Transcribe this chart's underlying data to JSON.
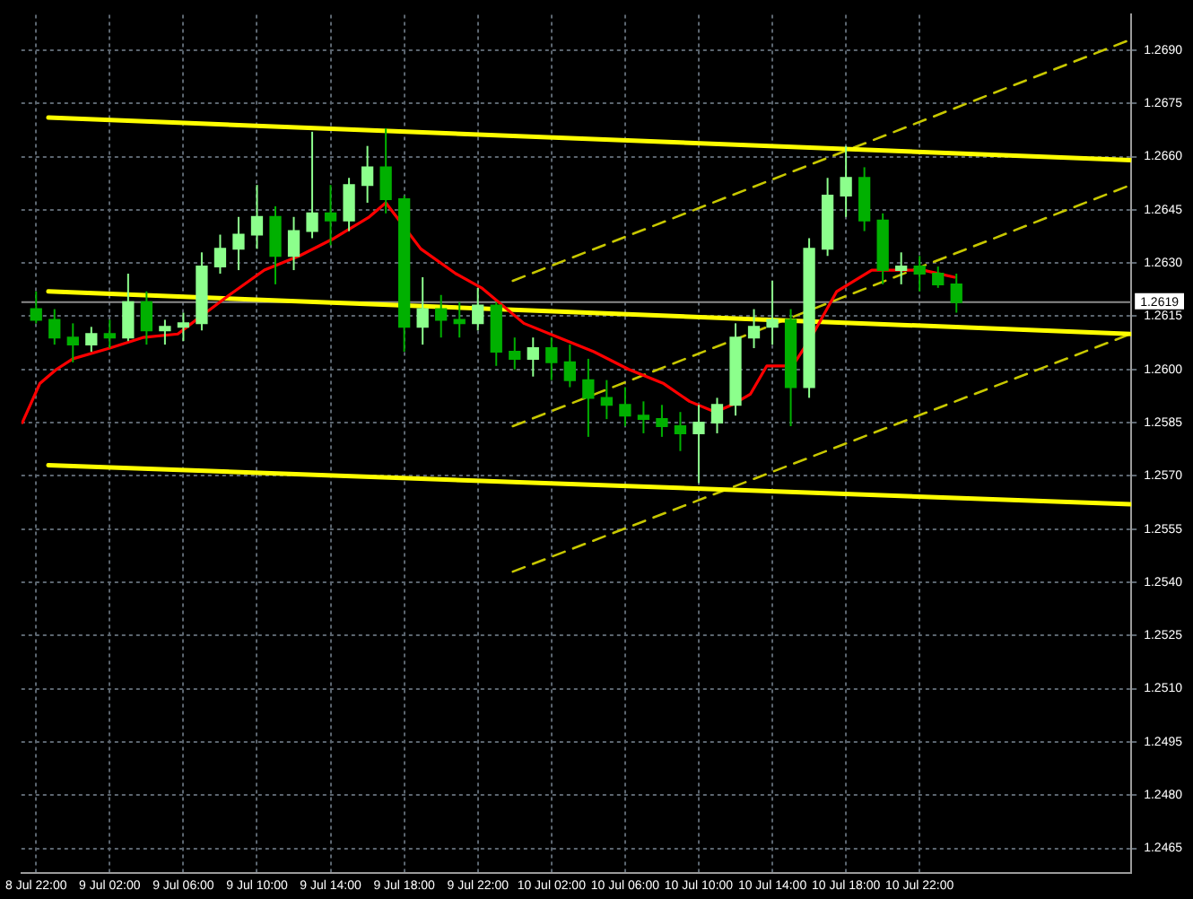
{
  "chart_data": {
    "type": "candlestick",
    "marker": "none",
    "grid": true,
    "colors": [
      "#00b000",
      "#00b000",
      "#00b000",
      "#8cff8c",
      "#00b000",
      "#8cff8c",
      "#00b000",
      "#8cff8c",
      "#8cff8c",
      "#8cff8c",
      "#8cff8c",
      "#8cff8c",
      "#8cff8c",
      "#00b000",
      "#8cff8c",
      "#8cff8c",
      "#00b000",
      "#8cff8c",
      "#8cff8c",
      "#00b000",
      "#00b000",
      "#8cff8c",
      "#00b000",
      "#00b000",
      "#8cff8c",
      "#00b000",
      "#00b000",
      "#8cff8c",
      "#00b000",
      "#00b000",
      "#00b000",
      "#00b000",
      "#00b000",
      "#00b000",
      "#00b000",
      "#00b000",
      "#8cff8c",
      "#8cff8c",
      "#8cff8c",
      "#8cff8c",
      "#8cff8c",
      "#00b000",
      "#8cff8c",
      "#8cff8c",
      "#8cff8c",
      "#00b000",
      "#00b000",
      "#8cff8c",
      "#00b000",
      "#00b000",
      "#00b000"
    ],
    "x": [
      "--07-08T22:00",
      "--07-08T23:00",
      "--07-09T00:00",
      "--07-09T01:00",
      "--07-09T02:00",
      "--07-09T03:00",
      "--07-09T04:00",
      "--07-09T05:00",
      "--07-09T06:00",
      "--07-09T07:00",
      "--07-09T08:00",
      "--07-09T09:00",
      "--07-09T10:00",
      "--07-09T11:00",
      "--07-09T12:00",
      "--07-09T13:00",
      "--07-09T14:00",
      "--07-09T15:00",
      "--07-09T16:00",
      "--07-09T17:00",
      "--07-09T18:00",
      "--07-09T19:00",
      "--07-09T20:00",
      "--07-09T21:00",
      "--07-09T22:00",
      "--07-09T23:00",
      "--07-10T00:00",
      "--07-10T01:00",
      "--07-10T02:00",
      "--07-10T03:00",
      "--07-10T04:00",
      "--07-10T05:00",
      "--07-10T06:00",
      "--07-10T07:00",
      "--07-10T08:00",
      "--07-10T09:00",
      "--07-10T10:00",
      "--07-10T11:00",
      "--07-10T12:00",
      "--07-10T13:00",
      "--07-10T14:00",
      "--07-10T15:00",
      "--07-10T16:00",
      "--07-10T17:00",
      "--07-10T18:00",
      "--07-10T19:00",
      "--07-10T20:00",
      "--07-10T21:00",
      "--07-10T22:00",
      "--07-10T23:00",
      "--07-11T00:00"
    ],
    "ohlc": [
      [
        1.2617,
        1.2622,
        1.2613,
        1.2614
      ],
      [
        1.2614,
        1.2617,
        1.2607,
        1.2609
      ],
      [
        1.2609,
        1.2613,
        1.2602,
        1.2607
      ],
      [
        1.2607,
        1.2612,
        1.2605,
        1.261
      ],
      [
        1.261,
        1.2614,
        1.2606,
        1.2609
      ],
      [
        1.2609,
        1.2627,
        1.2608,
        1.2619
      ],
      [
        1.2619,
        1.2622,
        1.2607,
        1.2611
      ],
      [
        1.2611,
        1.2614,
        1.2607,
        1.2612
      ],
      [
        1.2612,
        1.2616,
        1.2608,
        1.2613
      ],
      [
        1.2613,
        1.2633,
        1.2611,
        1.2629
      ],
      [
        1.2629,
        1.2638,
        1.2627,
        1.2634
      ],
      [
        1.2634,
        1.2643,
        1.2628,
        1.2638
      ],
      [
        1.2638,
        1.2652,
        1.2634,
        1.2643
      ],
      [
        1.2643,
        1.2646,
        1.2624,
        1.2632
      ],
      [
        1.2632,
        1.2643,
        1.2628,
        1.2639
      ],
      [
        1.2639,
        1.2667,
        1.2637,
        1.2644
      ],
      [
        1.2644,
        1.2652,
        1.2635,
        1.2642
      ],
      [
        1.2642,
        1.2654,
        1.2639,
        1.2652
      ],
      [
        1.2652,
        1.2663,
        1.2647,
        1.2657
      ],
      [
        1.2657,
        1.2668,
        1.2644,
        1.2648
      ],
      [
        1.2648,
        1.2649,
        1.2605,
        1.2612
      ],
      [
        1.2612,
        1.2626,
        1.2607,
        1.2617
      ],
      [
        1.2617,
        1.2621,
        1.2609,
        1.2614
      ],
      [
        1.2614,
        1.2619,
        1.2609,
        1.2613
      ],
      [
        1.2613,
        1.2623,
        1.2611,
        1.2618
      ],
      [
        1.2618,
        1.2619,
        1.2601,
        1.2605
      ],
      [
        1.2605,
        1.2609,
        1.26,
        1.2603
      ],
      [
        1.2603,
        1.2609,
        1.2598,
        1.2606
      ],
      [
        1.2606,
        1.2609,
        1.2597,
        1.2602
      ],
      [
        1.2602,
        1.2607,
        1.2595,
        1.2597
      ],
      [
        1.2597,
        1.2603,
        1.2581,
        1.2592
      ],
      [
        1.2592,
        1.2597,
        1.2586,
        1.259
      ],
      [
        1.259,
        1.2595,
        1.2584,
        1.2587
      ],
      [
        1.2587,
        1.2591,
        1.2582,
        1.2586
      ],
      [
        1.2586,
        1.259,
        1.2581,
        1.2584
      ],
      [
        1.2584,
        1.2588,
        1.2577,
        1.2582
      ],
      [
        1.2582,
        1.259,
        1.2568,
        1.2585
      ],
      [
        1.2585,
        1.2592,
        1.2582,
        1.259
      ],
      [
        1.259,
        1.2613,
        1.2587,
        1.2609
      ],
      [
        1.2609,
        1.2617,
        1.2606,
        1.2612
      ],
      [
        1.2612,
        1.2625,
        1.2607,
        1.2614
      ],
      [
        1.2614,
        1.2617,
        1.2584,
        1.2595
      ],
      [
        1.2595,
        1.2637,
        1.2592,
        1.2634
      ],
      [
        1.2634,
        1.2654,
        1.2632,
        1.2649
      ],
      [
        1.2649,
        1.2663,
        1.2643,
        1.2654
      ],
      [
        1.2654,
        1.2657,
        1.2639,
        1.2642
      ],
      [
        1.2642,
        1.2644,
        1.2624,
        1.2628
      ],
      [
        1.2628,
        1.2633,
        1.2624,
        1.2629
      ],
      [
        1.2629,
        1.2632,
        1.2622,
        1.2627
      ],
      [
        1.2627,
        1.2629,
        1.2623,
        1.2624
      ],
      [
        1.2624,
        1.2627,
        1.2616,
        1.2619
      ]
    ],
    "series": [
      {
        "type": "line",
        "color": "#ff0000",
        "line_style": "solid",
        "x": [
          "--07-08T21:15",
          "--07-08T22:12",
          "--07-08T23:06",
          "--07-09T00:00",
          "--07-09T02:00",
          "--07-09T03:48",
          "--07-09T05:42",
          "--07-09T06:42",
          "--07-09T08:30",
          "--07-09T10:24",
          "--07-09T12:18",
          "--07-09T14:12",
          "--07-09T16:06",
          "--07-09T17:00",
          "--07-09T18:54",
          "--07-09T20:48",
          "--07-09T22:12",
          "--07-10T00:30",
          "--07-10T02:24",
          "--07-10T04:18",
          "--07-10T06:12",
          "--07-10T08:06",
          "--07-10T09:30",
          "--07-10T10:54",
          "--07-10T11:48",
          "--07-10T12:48",
          "--07-10T13:42",
          "--07-10T15:06",
          "--07-10T16:06",
          "--07-10T17:30",
          "--07-10T19:24",
          "--07-10T22:12",
          "--07-10T23:54"
        ],
        "values": [
          1.2585,
          1.2596,
          1.26,
          1.2603,
          1.2606,
          1.2609,
          1.261,
          1.2614,
          1.2621,
          1.2628,
          1.2632,
          1.2637,
          1.2643,
          1.2647,
          1.2634,
          1.2627,
          1.2623,
          1.2613,
          1.2609,
          1.2605,
          1.26,
          1.2596,
          1.2591,
          1.2588,
          1.259,
          1.2593,
          1.2601,
          1.2601,
          1.2609,
          1.2622,
          1.2628,
          1.2628,
          1.2626
        ]
      },
      {
        "type": "line",
        "color": "#ffff00",
        "line_style": "solid",
        "x": [
          "--07-08T22:40",
          "--07-11T09:28"
        ],
        "values": [
          1.2671,
          1.2659
        ]
      },
      {
        "type": "line",
        "color": "#ffff00",
        "line_style": "solid",
        "x": [
          "--07-08T22:40",
          "--07-11T09:28"
        ],
        "values": [
          1.2622,
          1.261
        ]
      },
      {
        "type": "line",
        "color": "#ffff00",
        "line_style": "solid",
        "x": [
          "--07-08T22:40",
          "--07-11T09:28"
        ],
        "values": [
          1.2573,
          1.2562
        ]
      },
      {
        "type": "line",
        "color": "#c8c800",
        "line_style": "dashed",
        "x": [
          "--07-09T23:54",
          "--07-11T09:28"
        ],
        "values": [
          1.2625,
          1.2693
        ]
      },
      {
        "type": "line",
        "color": "#c8c800",
        "line_style": "dashed",
        "x": [
          "--07-09T23:54",
          "--07-11T09:28"
        ],
        "values": [
          1.2584,
          1.2652
        ]
      },
      {
        "type": "line",
        "color": "#c8c800",
        "line_style": "dashed",
        "x": [
          "--07-09T23:54",
          "--07-11T09:28"
        ],
        "values": [
          1.2543,
          1.261
        ]
      }
    ],
    "ref_lines": [
      {
        "axis": "y",
        "value": 1.2619,
        "label": "1.2619",
        "color": "#8a8a8a"
      }
    ],
    "xlim": [
      "--07-08T21:12",
      "--07-11T09:30"
    ],
    "xticks": [
      {
        "value": "--07-08T22:00",
        "label": "8 Jul 22:00"
      },
      {
        "value": "--07-09T02:00",
        "label": "9 Jul 02:00"
      },
      {
        "value": "--07-09T06:00",
        "label": "9 Jul 06:00"
      },
      {
        "value": "--07-09T10:00",
        "label": "9 Jul 10:00"
      },
      {
        "value": "--07-09T14:00",
        "label": "9 Jul 14:00"
      },
      {
        "value": "--07-09T18:00",
        "label": "9 Jul 18:00"
      },
      {
        "value": "--07-09T22:00",
        "label": "9 Jul 22:00"
      },
      {
        "value": "--07-10T02:00",
        "label": "10 Jul 02:00"
      },
      {
        "value": "--07-10T06:00",
        "label": "10 Jul 06:00"
      },
      {
        "value": "--07-10T10:00",
        "label": "10 Jul 10:00"
      },
      {
        "value": "--07-10T14:00",
        "label": "10 Jul 14:00"
      },
      {
        "value": "--07-10T18:00",
        "label": "10 Jul 18:00"
      },
      {
        "value": "--07-10T22:00",
        "label": "10 Jul 22:00"
      }
    ],
    "ylim": [
      1.2458,
      1.27
    ],
    "yticks": [
      {
        "value": 1.2465,
        "label": "1.2465"
      },
      {
        "value": 1.248,
        "label": "1.2480"
      },
      {
        "value": 1.2495,
        "label": "1.2495"
      },
      {
        "value": 1.251,
        "label": "1.2510"
      },
      {
        "value": 1.2525,
        "label": "1.2525"
      },
      {
        "value": 1.254,
        "label": "1.2540"
      },
      {
        "value": 1.2555,
        "label": "1.2555"
      },
      {
        "value": 1.257,
        "label": "1.2570"
      },
      {
        "value": 1.2585,
        "label": "1.2585"
      },
      {
        "value": 1.26,
        "label": "1.2600"
      },
      {
        "value": 1.2615,
        "label": "1.2615"
      },
      {
        "value": 1.263,
        "label": "1.2630"
      },
      {
        "value": 1.2645,
        "label": "1.2645"
      },
      {
        "value": 1.266,
        "label": "1.2660"
      },
      {
        "value": 1.2675,
        "label": "1.2675"
      },
      {
        "value": 1.269,
        "label": "1.2690"
      }
    ]
  }
}
